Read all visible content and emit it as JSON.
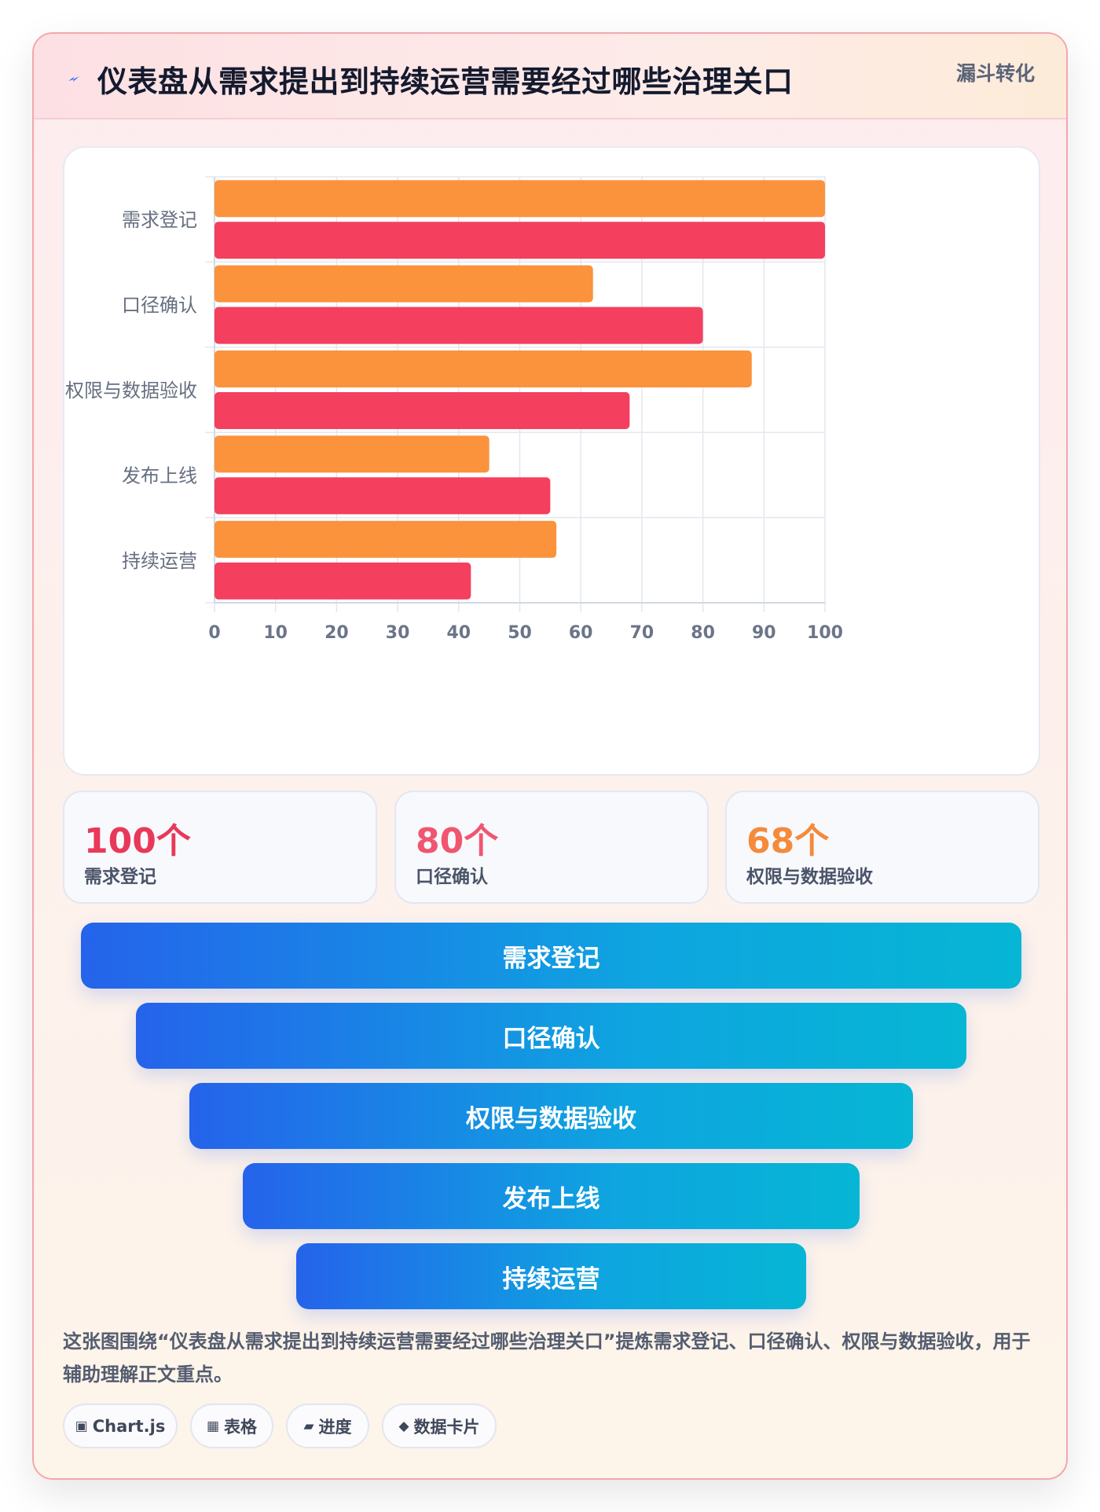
{
  "header": {
    "icon": "lightning-icon",
    "title": "仪表盘从需求提出到持续运营需要经过哪些治理关口",
    "tag": "漏斗转化"
  },
  "colors": {
    "orange": "#fb923c",
    "red": "#f43f5e",
    "funnel_start": "#2563eb",
    "funnel_end": "#06b6d4"
  },
  "chart_data": {
    "type": "bar",
    "orientation": "horizontal",
    "categories": [
      "需求登记",
      "口径确认",
      "权限与数据验收",
      "发布上线",
      "持续运营"
    ],
    "series": [
      {
        "values": [
          100,
          62,
          88,
          45,
          56
        ],
        "color": "#fb923c"
      },
      {
        "values": [
          100,
          80,
          68,
          55,
          42
        ],
        "color": "#f43f5e"
      }
    ],
    "xlim": [
      0,
      100
    ],
    "xticks": [
      "0",
      "10",
      "20",
      "30",
      "40",
      "50",
      "60",
      "70",
      "80",
      "90",
      "100"
    ],
    "grid": true,
    "legend": "none"
  },
  "stats": [
    {
      "value": "100个",
      "label": "需求登记",
      "color": "#e8395a"
    },
    {
      "value": "80个",
      "label": "口径确认",
      "color": "#f0566f"
    },
    {
      "value": "68个",
      "label": "权限与数据验收",
      "color": "#f58a3a"
    }
  ],
  "funnel": [
    "需求登记",
    "口径确认",
    "权限与数据验收",
    "发布上线",
    "持续运营"
  ],
  "description": "这张图围绕“仪表盘从需求提出到持续运营需要经过哪些治理关口”提炼需求登记、口径确认、权限与数据验收，用于辅助理解正文重点。",
  "chips": [
    {
      "icon": "▣",
      "label": "Chart.js"
    },
    {
      "icon": "▦",
      "label": "表格"
    },
    {
      "icon": "▰",
      "label": "进度"
    },
    {
      "icon": "◆",
      "label": "数据卡片"
    }
  ]
}
